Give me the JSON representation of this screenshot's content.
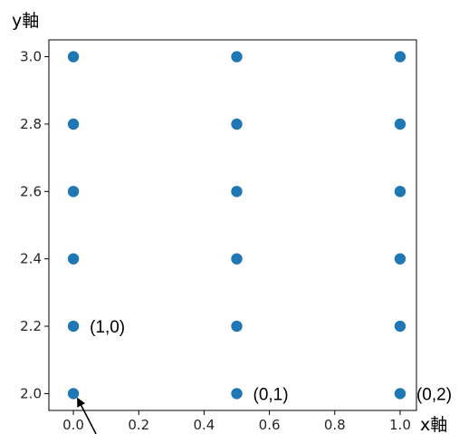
{
  "chart_data": {
    "type": "scatter",
    "title": "",
    "xlabel": "x軸",
    "ylabel": "y軸",
    "xlim": [
      -0.075,
      1.05
    ],
    "ylim": [
      1.95,
      3.05
    ],
    "xticks": [
      0.0,
      0.2,
      0.4,
      0.6,
      0.8,
      1.0
    ],
    "xtick_labels": [
      "0.0",
      "0.2",
      "0.4",
      "0.6",
      "0.8",
      "1.0"
    ],
    "yticks": [
      2.0,
      2.2,
      2.4,
      2.6,
      2.8,
      3.0
    ],
    "ytick_labels": [
      "2.0",
      "2.2",
      "2.4",
      "2.6",
      "2.8",
      "3.0"
    ],
    "grid": false,
    "point_color": "#1f77b4",
    "points": [
      {
        "x": 0.0,
        "y": 2.0
      },
      {
        "x": 0.0,
        "y": 2.2
      },
      {
        "x": 0.0,
        "y": 2.4
      },
      {
        "x": 0.0,
        "y": 2.6
      },
      {
        "x": 0.0,
        "y": 2.8
      },
      {
        "x": 0.0,
        "y": 3.0
      },
      {
        "x": 0.5,
        "y": 2.0
      },
      {
        "x": 0.5,
        "y": 2.2
      },
      {
        "x": 0.5,
        "y": 2.4
      },
      {
        "x": 0.5,
        "y": 2.6
      },
      {
        "x": 0.5,
        "y": 2.8
      },
      {
        "x": 0.5,
        "y": 3.0
      },
      {
        "x": 1.0,
        "y": 2.0
      },
      {
        "x": 1.0,
        "y": 2.2
      },
      {
        "x": 1.0,
        "y": 2.4
      },
      {
        "x": 1.0,
        "y": 2.6
      },
      {
        "x": 1.0,
        "y": 2.8
      },
      {
        "x": 1.0,
        "y": 3.0
      }
    ],
    "annotations": [
      {
        "text": "(1,0)",
        "x": 0.0,
        "y": 2.2
      },
      {
        "text": "(0,1)",
        "x": 0.5,
        "y": 2.0
      },
      {
        "text": "(0,2)",
        "x": 1.0,
        "y": 2.0
      }
    ],
    "arrow": {
      "x": 0.0,
      "y": 2.0
    }
  }
}
